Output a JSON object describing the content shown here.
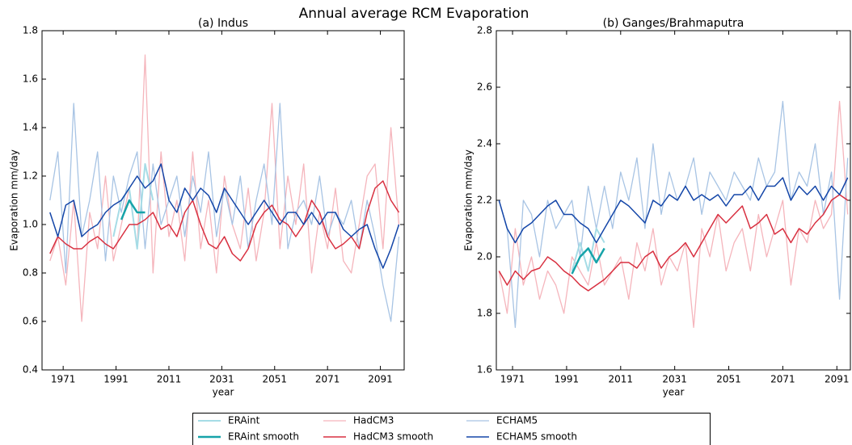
{
  "title": "Annual average RCM Evaporation",
  "chart_data": [
    {
      "type": "line",
      "title": "(a) Indus",
      "xlabel": "year",
      "ylabel": "Evaporation mm/day",
      "xlim": [
        1963,
        2100
      ],
      "xticks": [
        1971,
        1991,
        2011,
        2031,
        2051,
        2071,
        2091
      ],
      "ylim": [
        0.4,
        1.8
      ],
      "yticks": [
        0.4,
        0.6,
        0.8,
        {
          "value": 1,
          "label": "1.0"
        },
        1.2,
        1.4,
        1.6,
        1.8
      ],
      "x": [
        1966,
        1969,
        1972,
        1975,
        1978,
        1981,
        1984,
        1987,
        1990,
        1993,
        1996,
        1999,
        2002,
        2005,
        2008,
        2011,
        2014,
        2017,
        2020,
        2023,
        2026,
        2029,
        2032,
        2035,
        2038,
        2041,
        2044,
        2047,
        2050,
        2053,
        2056,
        2059,
        2062,
        2065,
        2068,
        2071,
        2074,
        2077,
        2080,
        2083,
        2086,
        2089,
        2092,
        2095,
        2098
      ],
      "series": [
        {
          "name": "HadCM3",
          "color": "#f5b5bc",
          "line_width": 1.3,
          "values": [
            0.85,
            0.95,
            0.75,
            1.1,
            0.6,
            1.05,
            0.9,
            1.2,
            0.85,
            1.0,
            1.15,
            0.9,
            1.7,
            0.8,
            1.3,
            0.95,
            1.1,
            0.85,
            1.3,
            0.9,
            1.1,
            0.8,
            1.2,
            1.0,
            0.9,
            1.15,
            0.85,
            1.05,
            1.5,
            0.9,
            1.2,
            1.0,
            1.25,
            0.8,
            1.05,
            0.9,
            1.15,
            0.85,
            0.8,
            1.0,
            1.2,
            1.25,
            0.9,
            1.4,
            1.0
          ]
        },
        {
          "name": "ECHAM5",
          "color": "#a8c4e4",
          "line_width": 1.3,
          "values": [
            1.1,
            1.3,
            0.8,
            1.5,
            0.95,
            1.1,
            1.3,
            0.85,
            1.2,
            1.05,
            1.2,
            1.3,
            0.9,
            1.25,
            1.0,
            1.1,
            1.2,
            0.95,
            1.2,
            1.05,
            1.3,
            0.95,
            1.15,
            1.0,
            1.2,
            0.9,
            1.1,
            1.25,
            1.0,
            1.5,
            0.9,
            1.05,
            1.1,
            1.0,
            1.2,
            0.95,
            1.05,
            1.0,
            1.1,
            0.9,
            1.1,
            0.95,
            0.75,
            0.6,
            0.95
          ]
        },
        {
          "name": "ERAint",
          "color": "#a6dce6",
          "line_width": 2,
          "values": [
            null,
            null,
            null,
            null,
            null,
            null,
            null,
            null,
            0.95,
            1.1,
            1.15,
            0.9,
            1.25,
            1.1,
            null,
            null,
            null,
            null,
            null,
            null,
            null,
            null,
            null,
            null,
            null,
            null,
            null,
            null,
            null,
            null,
            null,
            null,
            null,
            null,
            null,
            null,
            null,
            null,
            null,
            null,
            null,
            null,
            null,
            null,
            null
          ]
        },
        {
          "name": "HadCM3 smooth",
          "color": "#d83040",
          "line_width": 1.5,
          "values": [
            0.88,
            0.95,
            0.92,
            0.9,
            0.9,
            0.93,
            0.95,
            0.92,
            0.9,
            0.95,
            1.0,
            1.0,
            1.02,
            1.05,
            0.98,
            1.0,
            0.95,
            1.05,
            1.1,
            1.0,
            0.92,
            0.9,
            0.95,
            0.88,
            0.85,
            0.9,
            1.0,
            1.05,
            1.08,
            1.02,
            1.0,
            0.95,
            1.0,
            1.1,
            1.05,
            0.95,
            0.9,
            0.92,
            0.95,
            0.9,
            1.05,
            1.15,
            1.18,
            1.1,
            1.05
          ]
        },
        {
          "name": "ECHAM5 smooth",
          "color": "#1446a8",
          "line_width": 1.5,
          "values": [
            1.05,
            0.95,
            1.08,
            1.1,
            0.95,
            0.98,
            1.0,
            1.05,
            1.08,
            1.1,
            1.15,
            1.2,
            1.15,
            1.18,
            1.25,
            1.1,
            1.05,
            1.15,
            1.1,
            1.15,
            1.12,
            1.05,
            1.15,
            1.1,
            1.05,
            1.0,
            1.05,
            1.1,
            1.05,
            1.0,
            1.05,
            1.05,
            1.0,
            1.05,
            1.0,
            1.05,
            1.05,
            0.98,
            0.95,
            0.98,
            1.0,
            0.9,
            0.82,
            0.9,
            1.0
          ]
        },
        {
          "name": "ERAint smooth",
          "color": "#16a3a9",
          "line_width": 2.5,
          "values": [
            null,
            null,
            null,
            null,
            null,
            null,
            null,
            null,
            null,
            1.02,
            1.1,
            1.05,
            1.05,
            null,
            null,
            null,
            null,
            null,
            null,
            null,
            null,
            null,
            null,
            null,
            null,
            null,
            null,
            null,
            null,
            null,
            null,
            null,
            null,
            null,
            null,
            null,
            null,
            null,
            null,
            null,
            null,
            null,
            null,
            null,
            null
          ]
        }
      ]
    },
    {
      "type": "line",
      "title": "(b) Ganges/Brahmaputra",
      "xlabel": "year",
      "ylabel": "Evaporation mm/day",
      "xlim": [
        1965,
        2096
      ],
      "xticks": [
        1971,
        1991,
        2011,
        2031,
        2051,
        2071,
        2091
      ],
      "ylim": [
        1.6,
        2.8
      ],
      "yticks": [
        1.6,
        1.8,
        {
          "value": 2,
          "label": "2.0"
        },
        2.2,
        2.4,
        2.6,
        2.8
      ],
      "x": [
        1966,
        1969,
        1972,
        1975,
        1978,
        1981,
        1984,
        1987,
        1990,
        1993,
        1996,
        1999,
        2002,
        2005,
        2008,
        2011,
        2014,
        2017,
        2020,
        2023,
        2026,
        2029,
        2032,
        2035,
        2038,
        2041,
        2044,
        2047,
        2050,
        2053,
        2056,
        2059,
        2062,
        2065,
        2068,
        2071,
        2074,
        2077,
        2080,
        2083,
        2086,
        2089,
        2092,
        2095
      ],
      "series": [
        {
          "name": "HadCM3",
          "color": "#f5b5bc",
          "line_width": 1.3,
          "values": [
            1.95,
            1.8,
            2.1,
            1.9,
            2.0,
            1.85,
            1.95,
            1.9,
            1.8,
            2.0,
            1.95,
            1.9,
            2.05,
            1.9,
            1.95,
            2.0,
            1.85,
            2.05,
            1.95,
            2.1,
            1.9,
            2.0,
            1.95,
            2.05,
            1.75,
            2.1,
            2.0,
            2.15,
            1.95,
            2.05,
            2.1,
            1.95,
            2.15,
            2.0,
            2.1,
            2.2,
            1.9,
            2.1,
            2.05,
            2.2,
            2.1,
            2.15,
            2.55,
            2.15
          ]
        },
        {
          "name": "ECHAM5",
          "color": "#a8c4e4",
          "line_width": 1.3,
          "values": [
            2.2,
            2.1,
            1.75,
            2.2,
            2.15,
            2.0,
            2.2,
            2.1,
            2.15,
            2.2,
            2.0,
            2.25,
            2.1,
            2.25,
            2.1,
            2.3,
            2.2,
            2.35,
            2.1,
            2.4,
            2.15,
            2.3,
            2.2,
            2.25,
            2.35,
            2.15,
            2.3,
            2.25,
            2.2,
            2.3,
            2.25,
            2.2,
            2.35,
            2.25,
            2.3,
            2.55,
            2.2,
            2.3,
            2.25,
            2.4,
            2.15,
            2.3,
            1.85,
            2.35
          ]
        },
        {
          "name": "ERAint",
          "color": "#a6dce6",
          "line_width": 2,
          "values": [
            null,
            null,
            null,
            null,
            null,
            null,
            null,
            null,
            null,
            1.95,
            2.05,
            1.95,
            2.1,
            2.05,
            null,
            null,
            null,
            null,
            null,
            null,
            null,
            null,
            null,
            null,
            null,
            null,
            null,
            null,
            null,
            null,
            null,
            null,
            null,
            null,
            null,
            null,
            null,
            null,
            null,
            null,
            null,
            null,
            null,
            null
          ]
        },
        {
          "name": "HadCM3 smooth",
          "color": "#d83040",
          "line_width": 1.5,
          "values": [
            1.95,
            1.9,
            1.95,
            1.92,
            1.95,
            1.96,
            2.0,
            1.98,
            1.95,
            1.93,
            1.9,
            1.88,
            1.9,
            1.92,
            1.95,
            1.98,
            1.98,
            1.96,
            2.0,
            2.02,
            1.96,
            2.0,
            2.02,
            2.05,
            2.0,
            2.05,
            2.1,
            2.15,
            2.12,
            2.15,
            2.18,
            2.1,
            2.12,
            2.15,
            2.08,
            2.1,
            2.05,
            2.1,
            2.08,
            2.12,
            2.15,
            2.2,
            2.22,
            2.2
          ]
        },
        {
          "name": "ECHAM5 smooth",
          "color": "#1446a8",
          "line_width": 1.5,
          "values": [
            2.2,
            2.1,
            2.05,
            2.1,
            2.12,
            2.15,
            2.18,
            2.2,
            2.15,
            2.15,
            2.12,
            2.1,
            2.05,
            2.1,
            2.15,
            2.2,
            2.18,
            2.15,
            2.12,
            2.2,
            2.18,
            2.22,
            2.2,
            2.25,
            2.2,
            2.22,
            2.2,
            2.22,
            2.18,
            2.22,
            2.22,
            2.25,
            2.2,
            2.25,
            2.25,
            2.28,
            2.2,
            2.25,
            2.22,
            2.25,
            2.2,
            2.25,
            2.22,
            2.28
          ]
        },
        {
          "name": "ERAint smooth",
          "color": "#16a3a9",
          "line_width": 2.5,
          "values": [
            null,
            null,
            null,
            null,
            null,
            null,
            null,
            null,
            null,
            1.94,
            2.0,
            2.03,
            1.98,
            2.03,
            null,
            null,
            null,
            null,
            null,
            null,
            null,
            null,
            null,
            null,
            null,
            null,
            null,
            null,
            null,
            null,
            null,
            null,
            null,
            null,
            null,
            null,
            null,
            null,
            null,
            null,
            null,
            null,
            null,
            null
          ]
        }
      ]
    }
  ]
}
